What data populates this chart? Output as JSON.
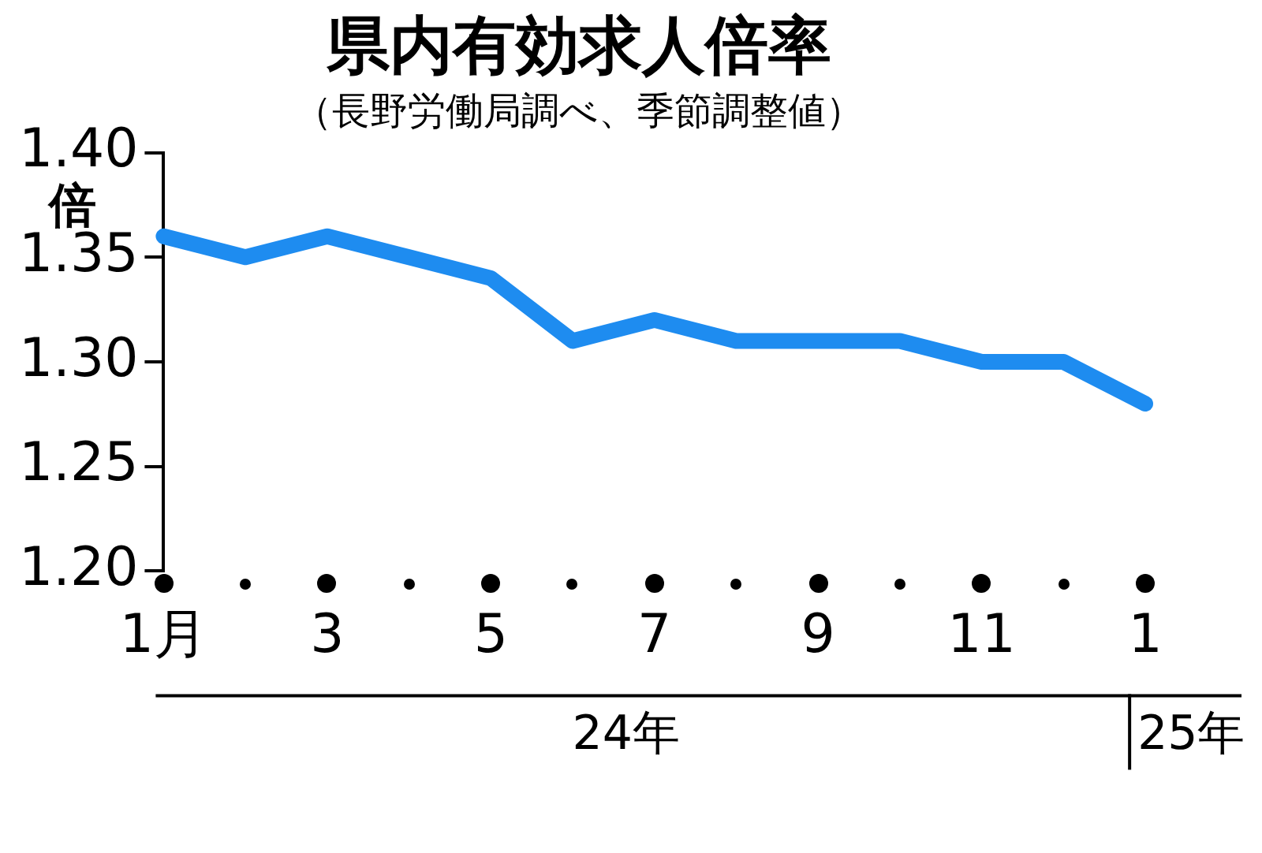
{
  "chart_data": {
    "type": "line",
    "title": "県内有効求人倍率",
    "subtitle": "（長野労働局調べ、季節調整値）",
    "ylabel": "倍",
    "categories": [
      "1月",
      null,
      "3",
      null,
      "5",
      null,
      "7",
      null,
      "9",
      null,
      "11",
      null,
      "1"
    ],
    "series": [
      {
        "color": "#1e8cf0",
        "values": [
          1.36,
          1.35,
          1.36,
          1.35,
          1.34,
          1.31,
          1.32,
          1.31,
          1.31,
          1.31,
          1.3,
          1.3,
          1.28
        ]
      }
    ],
    "ylim": [
      1.2,
      1.4
    ],
    "yticks": [
      {
        "value": 1.2,
        "label": "1.20"
      },
      {
        "value": 1.25,
        "label": "1.25"
      },
      {
        "value": 1.3,
        "label": "1.30"
      },
      {
        "value": 1.35,
        "label": "1.35"
      },
      {
        "value": 1.4,
        "label": "1.40"
      }
    ],
    "grid": false,
    "legend": false,
    "marker": "none",
    "line_style": "solid",
    "annotations": [
      "24年",
      "25年"
    ]
  }
}
